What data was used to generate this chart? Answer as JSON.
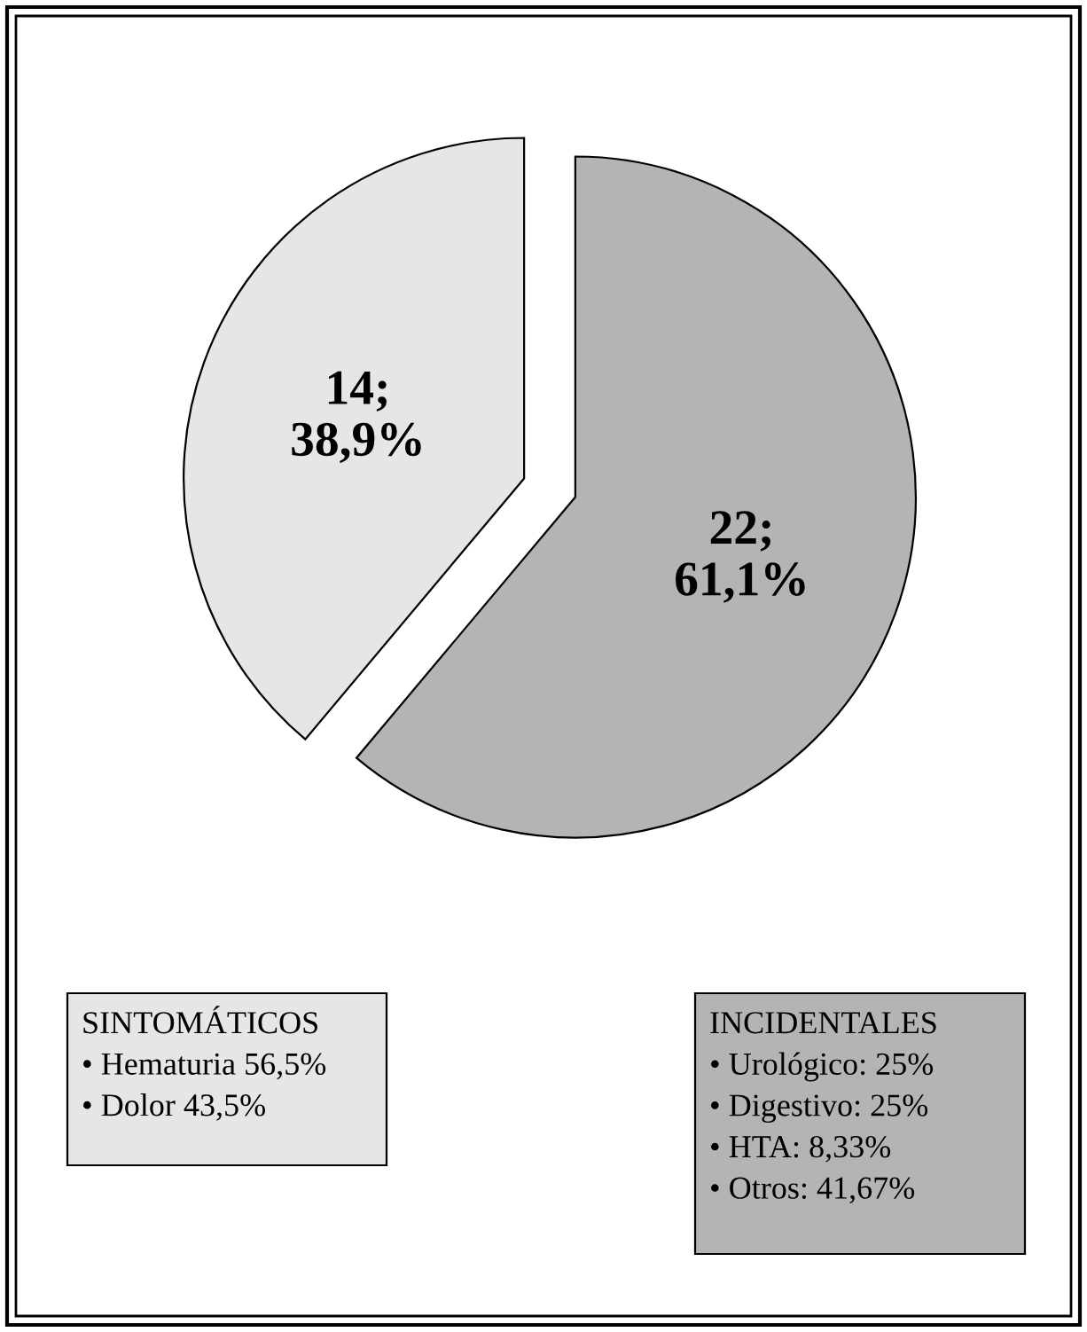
{
  "chart_data": {
    "type": "pie",
    "categories": [
      null,
      null
    ],
    "values": [
      14,
      22
    ],
    "colors": [
      "#e6e6e6",
      "#b4b4b4"
    ],
    "value_labels": [
      "14;\n38,9%",
      "22;\n61,1%"
    ],
    "annotations": [
      "SINTOMÁTICOS\n• Hematuria 56,5%\n• Dolor 43,5%",
      "INCIDENTALES\n• Urológico: 25%\n• Digestivo: 25%\n• HTA: 8,33%\n• Otros: 41,67%"
    ]
  }
}
